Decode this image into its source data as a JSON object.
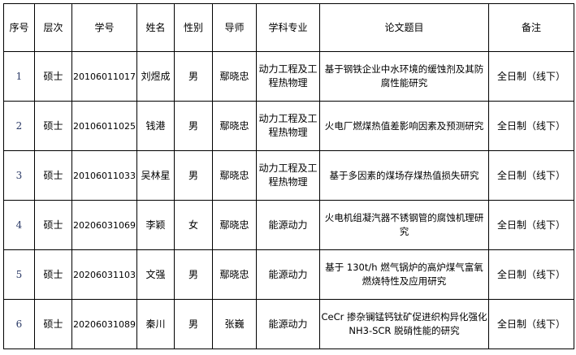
{
  "headers": [
    "序号",
    "层次",
    "学号",
    "姓名",
    "性别",
    "导师",
    "学科专业",
    "论文题目",
    "备注"
  ],
  "rows": [
    {
      "no": "1",
      "level": "硕士",
      "id": "20106011017",
      "name": "刘煜成",
      "gender": "男",
      "advisor": "鄢晓忠",
      "major": "动力工程及工程热物理",
      "title": "基于钢铁企业中水环境的缓蚀剂及其防腐性能研究",
      "note": "全日制（线下）"
    },
    {
      "no": "2",
      "level": "硕士",
      "id": "20106011025",
      "name": "钱港",
      "gender": "男",
      "advisor": "鄢晓忠",
      "major": "动力工程及工程热物理",
      "title": "火电厂燃煤热值差影响因素及预测研究",
      "note": "全日制（线下）"
    },
    {
      "no": "3",
      "level": "硕士",
      "id": "20106011033",
      "name": "吴林星",
      "gender": "男",
      "advisor": "鄢晓忠",
      "major": "动力工程及工程热物理",
      "title": "基于多因素的煤场存煤热值损失研究",
      "note": "全日制（线下）"
    },
    {
      "no": "4",
      "level": "硕士",
      "id": "20206031069",
      "name": "李颖",
      "gender": "女",
      "advisor": "鄢晓忠",
      "major": "能源动力",
      "title": "火电机组凝汽器不锈钢管的腐蚀机理研究",
      "note": "全日制（线下）"
    },
    {
      "no": "5",
      "level": "硕士",
      "id": "20206031103",
      "name": "文强",
      "gender": "男",
      "advisor": "鄢晓忠",
      "major": "能源动力",
      "title": "基于 130t/h 燃气锅炉的高炉煤气富氧燃烧特性及应用研究",
      "note": "全日制（线下）"
    },
    {
      "no": "6",
      "level": "硕士",
      "id": "20206031089",
      "name": "秦川",
      "gender": "男",
      "advisor": "张巍",
      "major": "能源动力",
      "title": "CeCr 掺杂镧锰钙钛矿促进织构异化强化 NH3-SCR 脱硝性能的研究",
      "note": "全日制（线下）"
    }
  ]
}
